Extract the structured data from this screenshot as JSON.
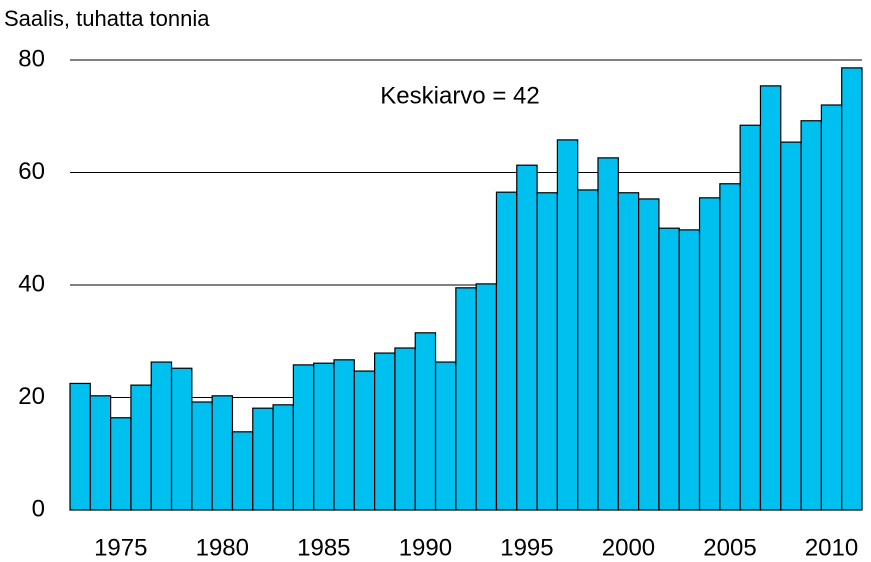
{
  "chart_data": {
    "type": "bar",
    "y_axis_label": "Saalis, tuhatta tonnia",
    "annotation": "Keskiarvo = 42",
    "x": [
      1973,
      1974,
      1975,
      1976,
      1977,
      1978,
      1979,
      1980,
      1981,
      1982,
      1983,
      1984,
      1985,
      1986,
      1987,
      1988,
      1989,
      1990,
      1991,
      1992,
      1993,
      1994,
      1995,
      1996,
      1997,
      1998,
      1999,
      2000,
      2001,
      2002,
      2003,
      2004,
      2005,
      2006,
      2007,
      2008,
      2009,
      2010,
      2011
    ],
    "values": [
      22.5,
      20.3,
      16.4,
      22.2,
      26.3,
      25.2,
      19.2,
      20.3,
      13.9,
      18.1,
      18.7,
      25.8,
      26.1,
      26.7,
      24.7,
      27.9,
      28.8,
      31.5,
      26.3,
      39.5,
      40.2,
      56.5,
      61.3,
      56.4,
      65.8,
      56.9,
      62.6,
      56.4,
      55.3,
      50.1,
      49.8,
      55.5,
      58,
      68.4,
      75.4,
      65.4,
      69.2,
      72,
      78.6
    ],
    "color": "#00c0f0",
    "xlim": [
      1972.5,
      2011.5
    ],
    "xticks": [
      1975,
      1980,
      1985,
      1990,
      1995,
      2000,
      2005,
      2010
    ],
    "ylim": [
      0,
      80
    ],
    "yticks": [
      0,
      20,
      40,
      60,
      80
    ],
    "grid": true
  }
}
